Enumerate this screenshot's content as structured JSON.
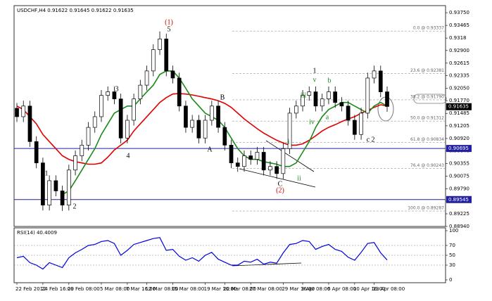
{
  "chart_data": [
    {
      "type": "candlestick",
      "title": "USDCHF,H4  0.91622 0.91645 0.91622 0.91635",
      "categories": [
        "22 Feb 2012",
        null,
        null,
        null,
        "24 Feb 16:00",
        null,
        null,
        null,
        "29 Feb 08:00",
        null,
        null,
        null,
        null,
        "5 Mar 08:00",
        null,
        null,
        null,
        "7 Mar 16:00",
        null,
        null,
        "12 Mar 08:00",
        null,
        null,
        null,
        "15 Mar 08:00",
        null,
        null,
        null,
        null,
        "19 Mar 16:00",
        null,
        null,
        "22 Mar 08:00",
        null,
        null,
        null,
        "27 Mar 08:00",
        null,
        null,
        null,
        null,
        "29 Mar 16:00",
        null,
        null,
        "3 Apr 08:00",
        null,
        null,
        null,
        "6 Apr 08:00",
        null,
        null,
        null,
        "10 Apr 16:00",
        null,
        null,
        "13 Apr 08:00",
        null,
        null
      ],
      "open": [
        0.916,
        0.9141,
        0.9165,
        0.9085,
        0.9037,
        0.8942,
        0.8997,
        0.8974,
        0.8942,
        0.9021,
        0.9053,
        0.9077,
        0.9117,
        0.9141,
        0.9189,
        0.9197,
        0.9181,
        0.9093,
        0.9133,
        0.9181,
        0.9212,
        0.9244,
        0.9292,
        0.9316,
        0.9244,
        0.9228,
        0.9165,
        0.9117,
        0.9133,
        0.9093,
        0.9133,
        0.9165,
        0.9117,
        0.9077,
        0.9037,
        0.9029,
        0.9053,
        0.9045,
        0.9061,
        0.9021,
        0.9029,
        0.9013,
        0.9069,
        0.9149,
        0.9165,
        0.9189,
        0.9197,
        0.9165,
        0.9181,
        0.9197,
        0.9173,
        0.9165,
        0.9133,
        0.9101,
        0.9149,
        0.9228,
        0.9244,
        0.9197
      ],
      "high": [
        0.9172,
        0.9177,
        0.9177,
        0.9097,
        0.9049,
        0.9009,
        0.9009,
        0.8986,
        0.9033,
        0.9065,
        0.9089,
        0.9129,
        0.9153,
        0.9201,
        0.9209,
        0.9209,
        0.9193,
        0.9145,
        0.9193,
        0.9224,
        0.9256,
        0.9304,
        0.9333,
        0.9328,
        0.9256,
        0.924,
        0.9177,
        0.9145,
        0.9145,
        0.9145,
        0.9177,
        0.9177,
        0.9129,
        0.9089,
        0.9049,
        0.9065,
        0.9065,
        0.9073,
        0.9073,
        0.9041,
        0.9041,
        0.9081,
        0.9161,
        0.9177,
        0.9201,
        0.9209,
        0.9209,
        0.9193,
        0.9209,
        0.9209,
        0.9185,
        0.9177,
        0.9145,
        0.9161,
        0.924,
        0.9256,
        0.9256,
        0.9209
      ],
      "low": [
        0.9129,
        0.9129,
        0.9073,
        0.9025,
        0.893,
        0.893,
        0.8962,
        0.8929,
        0.893,
        0.9009,
        0.9041,
        0.9065,
        0.9105,
        0.9129,
        0.9177,
        0.9169,
        0.9081,
        0.9081,
        0.9121,
        0.9169,
        0.92,
        0.9232,
        0.928,
        0.9232,
        0.9216,
        0.9153,
        0.9105,
        0.9105,
        0.9081,
        0.9081,
        0.9121,
        0.9105,
        0.9065,
        0.9025,
        0.9017,
        0.9017,
        0.9033,
        0.9033,
        0.9009,
        0.9009,
        0.9001,
        0.9001,
        0.9057,
        0.9137,
        0.9153,
        0.9177,
        0.9153,
        0.9153,
        0.9169,
        0.9161,
        0.9153,
        0.9121,
        0.9089,
        0.9089,
        0.9137,
        0.9216,
        0.9185,
        0.9152
      ],
      "close": [
        0.9141,
        0.9165,
        0.9085,
        0.9037,
        0.8942,
        0.8997,
        0.8974,
        0.8942,
        0.9021,
        0.9053,
        0.9077,
        0.9117,
        0.9141,
        0.9189,
        0.9197,
        0.9181,
        0.9093,
        0.9133,
        0.9181,
        0.9212,
        0.9244,
        0.9292,
        0.9316,
        0.9244,
        0.9228,
        0.9165,
        0.9117,
        0.9133,
        0.9093,
        0.9133,
        0.9165,
        0.9117,
        0.9077,
        0.9037,
        0.9029,
        0.9053,
        0.9045,
        0.9061,
        0.9021,
        0.9029,
        0.9013,
        0.9069,
        0.9149,
        0.9165,
        0.9189,
        0.9197,
        0.9165,
        0.9181,
        0.9197,
        0.9173,
        0.9165,
        0.9133,
        0.9101,
        0.9149,
        0.9228,
        0.9244,
        0.9197,
        0.9164
      ],
      "series": [
        {
          "color": "#e00000",
          "values": [
            0.9165,
            0.9157,
            0.9141,
            0.9125,
            0.9101,
            0.9085,
            0.9069,
            0.9053,
            0.9045,
            0.904,
            0.9037,
            0.9034,
            0.9034,
            0.9037,
            0.905,
            0.9066,
            0.9077,
            0.9088,
            0.9109,
            0.9125,
            0.9141,
            0.9157,
            0.9173,
            0.9184,
            0.9192,
            0.9193,
            0.9192,
            0.919,
            0.9187,
            0.9184,
            0.9181,
            0.9177,
            0.9171,
            0.9162,
            0.9149,
            0.9136,
            0.9125,
            0.9114,
            0.9104,
            0.9096,
            0.9088,
            0.9082,
            0.9077,
            0.9077,
            0.908,
            0.9088,
            0.9098,
            0.9109,
            0.9117,
            0.9123,
            0.913,
            0.9136,
            0.9141,
            0.9149,
            0.9155,
            0.9162,
            0.9168,
            0.9165
          ]
        },
        {
          "color": "#1a8a1a",
          "values": [
            null,
            null,
            null,
            null,
            null,
            null,
            null,
            0.8966,
            0.8974,
            0.8997,
            0.9021,
            0.9045,
            0.9069,
            0.9101,
            0.9125,
            0.9149,
            0.9157,
            0.9165,
            0.9165,
            0.9181,
            0.9197,
            0.9212,
            0.9236,
            0.9244,
            0.9244,
            0.9228,
            0.9205,
            0.9181,
            0.9165,
            0.9149,
            0.9141,
            0.9133,
            0.9117,
            0.9093,
            0.9069,
            0.9053,
            0.9045,
            0.9045,
            0.904,
            0.9037,
            0.9034,
            0.9029,
            0.9029,
            0.9037,
            0.9061,
            0.9085,
            0.9117,
            0.9141,
            0.9157,
            0.9165,
            0.9173,
            0.9173,
            0.9165,
            0.9157,
            0.9149,
            0.9165,
            0.9173,
            0.9165
          ]
        }
      ],
      "ylim": [
        0.8894,
        0.9391
      ],
      "yticks": [
        {
          "value": 0.9375,
          "label": "0.93750"
        },
        0.93465,
        0.9318,
        {
          "value": 0.929,
          "label": "0.92900"
        },
        0.92615,
        0.92335,
        {
          "value": 0.9205,
          "label": "0.92050"
        },
        {
          "value": 0.9177,
          "label": "0.91770"
        },
        0.91485,
        0.91205,
        {
          "value": 0.9092,
          "label": "0.90920"
        },
        {
          "value": 0.9064,
          "label": "0.90640"
        },
        0.90355,
        0.90075,
        {
          "value": 0.8979,
          "label": "0.89790"
        },
        {
          "value": 0.8951,
          "label": "0.89510"
        },
        0.89225,
        {
          "value": 0.8894,
          "label": "0.88940"
        }
      ],
      "fib_levels": [
        {
          "value": 0.93337,
          "label": "0.0 @ 0.93337"
        },
        {
          "value": 0.92381,
          "label": "23.6 @ 0.92381"
        },
        {
          "value": 0.9179,
          "label": "38.2 @ 0.91790"
        },
        {
          "value": 0.91312,
          "label": "50.0 @ 0.91312"
        },
        {
          "value": 0.90834,
          "label": "61.8 @ 0.90834"
        },
        {
          "value": 0.90243,
          "label": "76.4 @ 0.90243"
        },
        {
          "value": 0.89287,
          "label": "100.0 @ 0.89287"
        }
      ],
      "hlines": [
        {
          "value": 0.90695,
          "label": "0.90695",
          "color": "#2020a0"
        },
        {
          "value": 0.89545,
          "label": "0.89545",
          "color": "#2020a0"
        },
        {
          "value": 0.91635,
          "label": "0.91635",
          "color": "#000000"
        }
      ],
      "annotations": [
        "(1)",
        "5",
        "1",
        "2",
        "3",
        "4",
        "A",
        "B",
        "C",
        "(2)",
        "i",
        "ii",
        "iii",
        "iv",
        "v",
        "a",
        "b",
        "1",
        "c",
        "2"
      ]
    },
    {
      "type": "line",
      "title": "RSI(14) 40.4009",
      "color": "#0000e0",
      "values": [
        45,
        48,
        35,
        30,
        22,
        35,
        30,
        25,
        45,
        55,
        62,
        70,
        72,
        78,
        80,
        74,
        50,
        60,
        72,
        76,
        80,
        84,
        86,
        60,
        62,
        48,
        40,
        45,
        38,
        50,
        56,
        42,
        36,
        30,
        30,
        38,
        36,
        42,
        32,
        36,
        34,
        55,
        72,
        74,
        80,
        78,
        62,
        68,
        72,
        62,
        58,
        46,
        40,
        56,
        74,
        76,
        55,
        40.4009
      ],
      "ylim": [
        0,
        100
      ],
      "yticks": [
        0,
        30,
        50,
        70,
        100
      ],
      "levels": [
        30,
        50,
        70
      ]
    }
  ]
}
